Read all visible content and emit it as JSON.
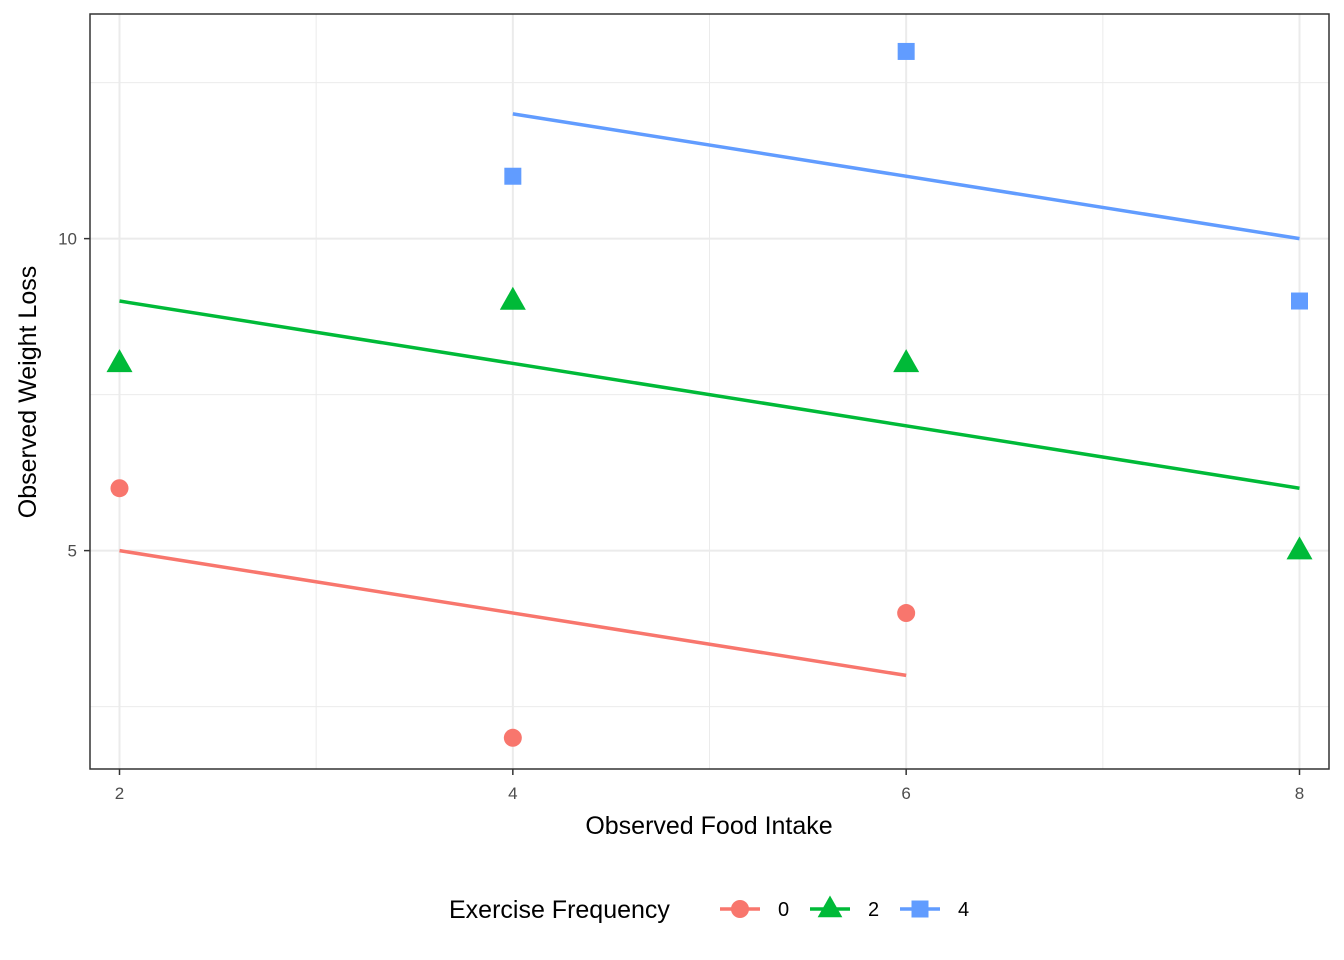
{
  "chart_data": {
    "type": "scatter",
    "title": "",
    "xlabel": "Observed Food Intake",
    "ylabel": "Observed Weight Loss",
    "xlim": [
      1.85,
      8.15
    ],
    "ylim": [
      1.5,
      13.6
    ],
    "x_ticks": [
      2,
      4,
      6,
      8
    ],
    "x_minor": [
      3,
      5,
      7
    ],
    "y_ticks": [
      5,
      10
    ],
    "y_minor": [
      2.5,
      7.5,
      12.5
    ],
    "grid": true,
    "legend": {
      "title": "Exercise Frequency",
      "placement": "bottom"
    },
    "series": [
      {
        "name": "0",
        "color": "#F8766D",
        "shape": "circle",
        "points": [
          [
            2,
            6
          ],
          [
            4,
            2
          ],
          [
            6,
            4
          ]
        ],
        "fit_line": [
          [
            2,
            5
          ],
          [
            6,
            3
          ]
        ]
      },
      {
        "name": "2",
        "color": "#00BA38",
        "shape": "triangle",
        "points": [
          [
            2,
            8
          ],
          [
            4,
            9
          ],
          [
            6,
            8
          ],
          [
            8,
            5
          ]
        ],
        "fit_line": [
          [
            2,
            9
          ],
          [
            8,
            6
          ]
        ]
      },
      {
        "name": "4",
        "color": "#619CFF",
        "shape": "square",
        "points": [
          [
            4,
            11
          ],
          [
            6,
            13
          ],
          [
            8,
            9
          ]
        ],
        "fit_line": [
          [
            4,
            12
          ],
          [
            8,
            10
          ]
        ]
      }
    ]
  }
}
